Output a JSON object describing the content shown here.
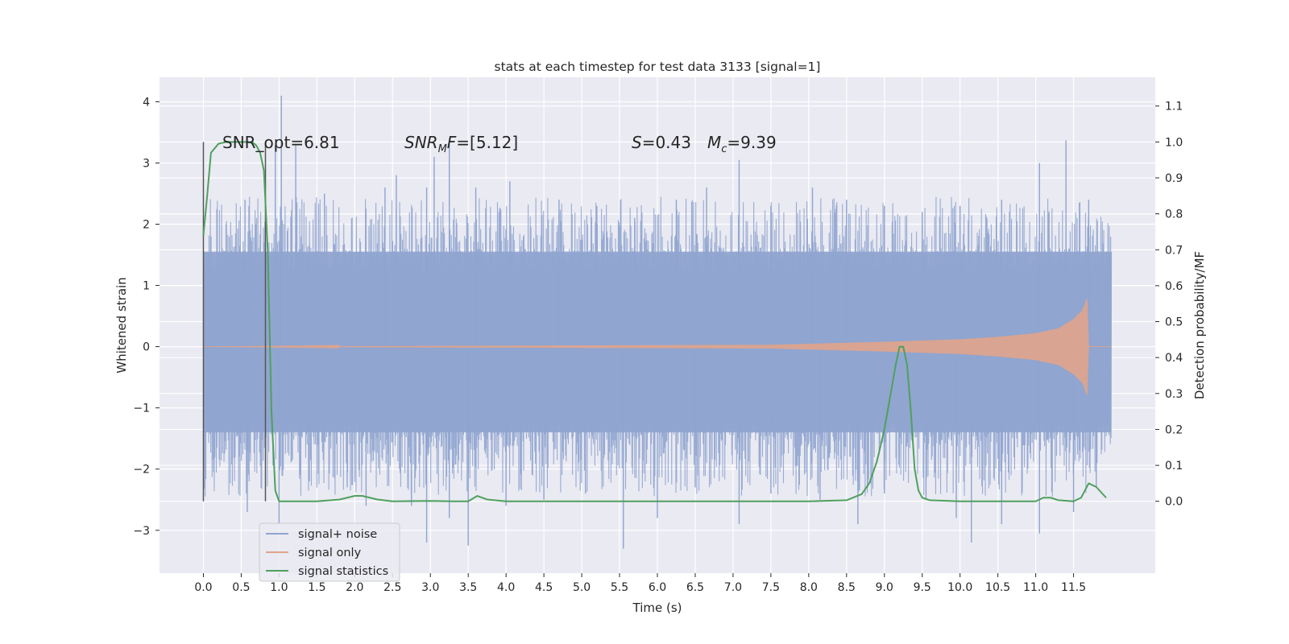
{
  "chart_data": {
    "type": "line",
    "title": "stats at each timestep for test data 3133 [signal=1]",
    "xlabel": "Time (s)",
    "ylabel_left": "Whitened strain",
    "ylabel_right": "Detection probability/MF",
    "xlim": [
      -0.58,
      12.58
    ],
    "ylim_left": [
      -3.7,
      4.4
    ],
    "ylim_right": [
      -0.2,
      1.18
    ],
    "x_ticks": [
      "0.0",
      "0.5",
      "1.0",
      "1.5",
      "2.0",
      "2.5",
      "3.0",
      "3.5",
      "4.0",
      "4.5",
      "5.0",
      "5.5",
      "6.0",
      "6.5",
      "7.0",
      "7.5",
      "8.0",
      "8.5",
      "9.0",
      "9.5",
      "10.0",
      "10.5",
      "11.0",
      "11.5"
    ],
    "y_ticks_left": [
      "4",
      "3",
      "2",
      "1",
      "0",
      "−1",
      "−2",
      "−3"
    ],
    "y_ticks_right": [
      "1.1",
      "1.0",
      "0.9",
      "0.8",
      "0.7",
      "0.6",
      "0.5",
      "0.4",
      "0.3",
      "0.2",
      "0.1",
      "0.0"
    ],
    "grid": true,
    "legend_position": "lower-left",
    "annotations": {
      "snr_opt": "SNR_opt=6.81",
      "snr_mf": "[5.12]",
      "s_val": "=0.43",
      "mc_val": "=9.39"
    },
    "vertical_markers": [
      0.0,
      0.82
    ],
    "series": [
      {
        "name": "signal+ noise",
        "color": "#8fa4cf",
        "duration": 12.0,
        "dense_band": [
          -1.4,
          1.55
        ],
        "spikes": [
          [
            0.1,
            1.8
          ],
          [
            0.3,
            2.0
          ],
          [
            0.55,
            2.4
          ],
          [
            0.95,
            3.3
          ],
          [
            1.03,
            4.1
          ],
          [
            1.22,
            3.3
          ],
          [
            1.6,
            2.5
          ],
          [
            2.4,
            2.6
          ],
          [
            2.55,
            2.8
          ],
          [
            2.95,
            2.6
          ],
          [
            3.05,
            3.1
          ],
          [
            3.25,
            3.3
          ],
          [
            3.6,
            2.6
          ],
          [
            4.05,
            2.7
          ],
          [
            4.7,
            2.4
          ],
          [
            5.2,
            2.3
          ],
          [
            5.7,
            2.1
          ],
          [
            6.25,
            2.4
          ],
          [
            6.65,
            2.6
          ],
          [
            7.08,
            3.05
          ],
          [
            7.5,
            2.3
          ],
          [
            8.05,
            2.6
          ],
          [
            8.5,
            2.4
          ],
          [
            9.0,
            2.3
          ],
          [
            9.5,
            2.2
          ],
          [
            10.0,
            2.3
          ],
          [
            10.55,
            2.4
          ],
          [
            11.05,
            3.0
          ],
          [
            11.4,
            3.37
          ],
          [
            11.7,
            2.4
          ],
          [
            0.58,
            -2.7
          ],
          [
            1.0,
            -2.9
          ],
          [
            1.4,
            -2.2
          ],
          [
            1.9,
            -2.3
          ],
          [
            2.15,
            -2.6
          ],
          [
            2.75,
            -2.6
          ],
          [
            2.95,
            -3.2
          ],
          [
            3.25,
            -2.8
          ],
          [
            3.5,
            -3.25
          ],
          [
            4.0,
            -2.6
          ],
          [
            4.5,
            -2.5
          ],
          [
            5.05,
            -2.4
          ],
          [
            5.55,
            -3.3
          ],
          [
            6.0,
            -2.8
          ],
          [
            6.5,
            -2.3
          ],
          [
            7.08,
            -2.9
          ],
          [
            7.5,
            -2.4
          ],
          [
            8.15,
            -2.5
          ],
          [
            8.65,
            -2.9
          ],
          [
            9.0,
            -2.4
          ],
          [
            9.55,
            -2.5
          ],
          [
            9.95,
            -2.8
          ],
          [
            10.15,
            -3.2
          ],
          [
            10.55,
            -2.9
          ],
          [
            11.05,
            -3.05
          ],
          [
            11.5,
            -2.7
          ],
          [
            11.8,
            -2.3
          ]
        ]
      },
      {
        "name": "signal only",
        "color": "#e1a48a",
        "amplitude_envelope": [
          [
            0.0,
            0.0
          ],
          [
            7.5,
            0.03
          ],
          [
            9.0,
            0.08
          ],
          [
            10.0,
            0.12
          ],
          [
            10.5,
            0.16
          ],
          [
            11.0,
            0.22
          ],
          [
            11.3,
            0.3
          ],
          [
            11.5,
            0.45
          ],
          [
            11.62,
            0.6
          ],
          [
            11.68,
            0.8
          ],
          [
            11.7,
            0.0
          ],
          [
            12.0,
            0.0
          ]
        ]
      },
      {
        "name": "signal statistics",
        "color": "#4fa05e",
        "x": [
          0.0,
          0.05,
          0.1,
          0.2,
          0.3,
          0.4,
          0.5,
          0.6,
          0.65,
          0.7,
          0.75,
          0.8,
          0.85,
          0.9,
          0.95,
          1.0,
          1.5,
          1.8,
          2.0,
          2.1,
          2.3,
          2.5,
          3.0,
          3.3,
          3.5,
          3.62,
          3.75,
          4.0,
          5.0,
          6.0,
          7.0,
          8.0,
          8.5,
          8.7,
          8.8,
          8.9,
          9.0,
          9.1,
          9.15,
          9.2,
          9.25,
          9.3,
          9.35,
          9.4,
          9.45,
          9.5,
          9.6,
          10.0,
          10.5,
          11.0,
          11.1,
          11.2,
          11.3,
          11.5,
          11.6,
          11.7,
          11.8,
          11.93
        ],
        "y": [
          0.74,
          0.85,
          0.97,
          0.995,
          1.0,
          1.0,
          1.0,
          1.0,
          0.999,
          0.99,
          0.97,
          0.92,
          0.7,
          0.25,
          0.03,
          0.0,
          0.0,
          0.005,
          0.015,
          0.015,
          0.005,
          0.0,
          0.001,
          0.0,
          0.0,
          0.015,
          0.005,
          0.0,
          0.0,
          0.0,
          0.0,
          0.0,
          0.003,
          0.02,
          0.05,
          0.11,
          0.2,
          0.32,
          0.38,
          0.43,
          0.43,
          0.38,
          0.25,
          0.09,
          0.03,
          0.01,
          0.003,
          0.0,
          0.0,
          0.0,
          0.01,
          0.01,
          0.003,
          0.0,
          0.01,
          0.05,
          0.04,
          0.01
        ]
      }
    ]
  }
}
